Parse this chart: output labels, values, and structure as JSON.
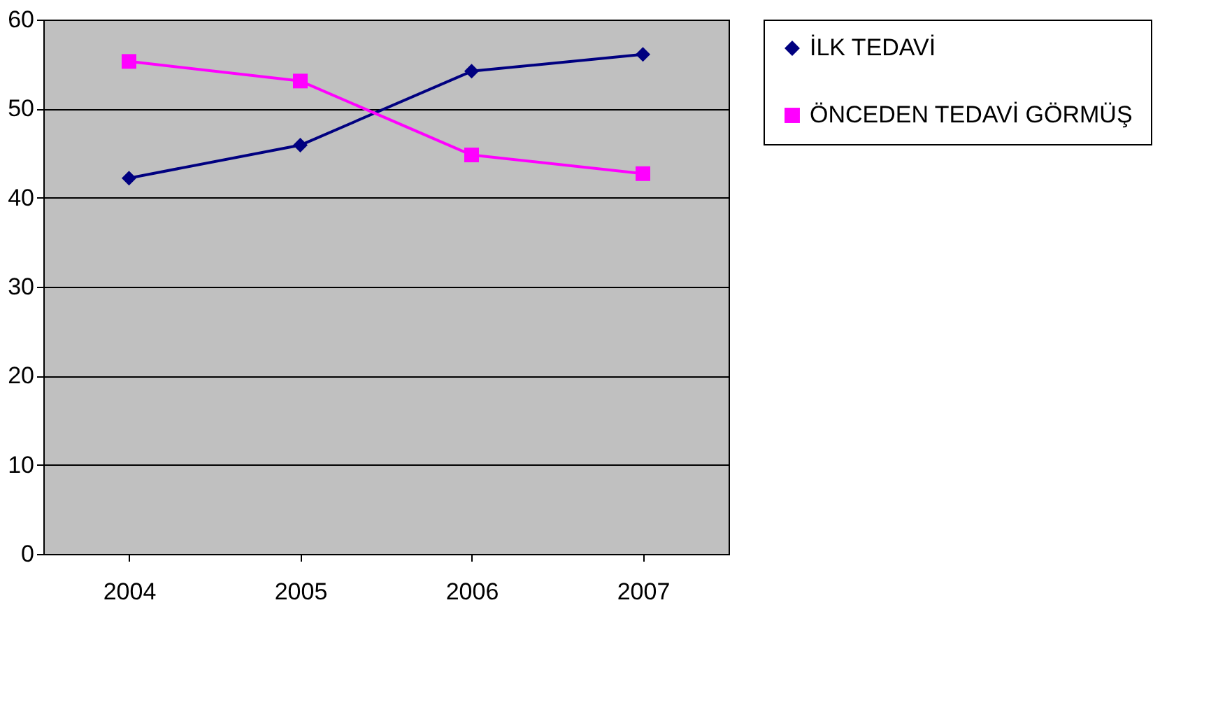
{
  "chart_data": {
    "type": "line",
    "categories": [
      "2004",
      "2005",
      "2006",
      "2007"
    ],
    "series": [
      {
        "name": "İLK TEDAVİ",
        "color": "#000080",
        "marker": "diamond",
        "values": [
          42.2,
          45.9,
          54.2,
          56.1
        ]
      },
      {
        "name": "ÖNCEDEN TEDAVİ GÖRMÜŞ",
        "color": "#ff00ff",
        "marker": "square",
        "values": [
          55.3,
          53.1,
          44.8,
          42.7
        ]
      }
    ],
    "ylim": [
      0,
      60
    ],
    "yticks": [
      0,
      10,
      20,
      30,
      40,
      50,
      60
    ],
    "grid": "y",
    "legend": "right",
    "line_style": "solid"
  }
}
